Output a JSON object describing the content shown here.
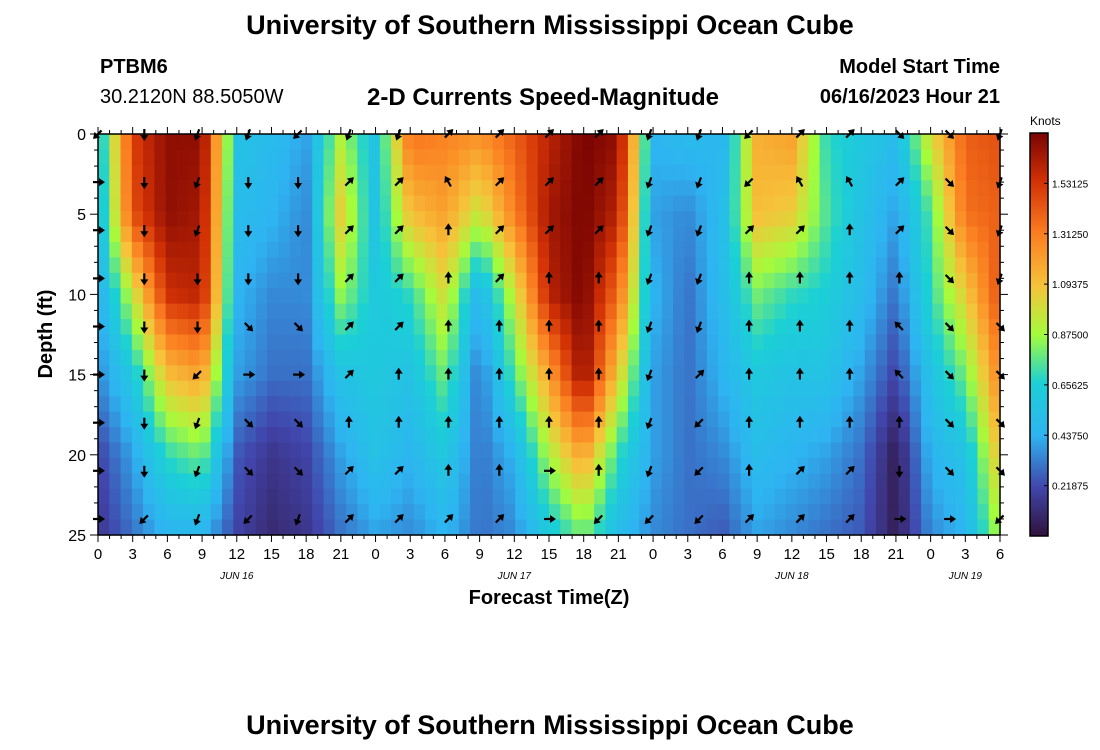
{
  "header": {
    "top_title": "University of Southern Mississippi Ocean Cube",
    "bottom_title": "University of Southern Mississippi Ocean Cube",
    "station": "PTBM6",
    "coords": "30.2120N  88.5050W",
    "chart_title": "2-D Currents Speed-Magnitude",
    "model_label": "Model Start Time",
    "model_time": "06/16/2023 Hour 21"
  },
  "chart_data": {
    "type": "heatmap",
    "title": "2-D Currents Speed-Magnitude",
    "xlabel": "Forecast Time(Z)",
    "ylabel": "Depth (ft)",
    "ylim": [
      0,
      25
    ],
    "y_ticks": [
      0,
      5,
      10,
      15,
      20,
      25
    ],
    "x_tick_labels": [
      "0",
      "3",
      "6",
      "9",
      "12",
      "15",
      "18",
      "21",
      "0",
      "3",
      "6",
      "9",
      "12",
      "15",
      "18",
      "21",
      "0",
      "3",
      "6",
      "9",
      "12",
      "15",
      "18",
      "21",
      "0",
      "3",
      "6"
    ],
    "date_labels": [
      {
        "label": "JUN 16",
        "hour": 12
      },
      {
        "label": "JUN 17",
        "hour": 36
      },
      {
        "label": "JUN 18",
        "hour": 60
      },
      {
        "label": "JUN 19",
        "hour": 75
      }
    ],
    "x_range_hours": [
      0,
      78
    ],
    "colorbar": {
      "unit": "Knots",
      "min": 0,
      "max": 1.75,
      "tick_labels": [
        "1.53125",
        "1.31250",
        "1.09375",
        "0.87500",
        "0.65625",
        "0.43750",
        "0.21875"
      ],
      "tick_values": [
        1.53125,
        1.3125,
        1.09375,
        0.875,
        0.65625,
        0.4375,
        0.21875
      ]
    },
    "speed_knots": {
      "hours": [
        0,
        3,
        6,
        9,
        12,
        15,
        18,
        21,
        24,
        27,
        30,
        33,
        36,
        39,
        42,
        45,
        48,
        51,
        54,
        57,
        60,
        63,
        66,
        69,
        72,
        75,
        78
      ],
      "depths_ft": [
        0,
        5,
        10,
        15,
        20,
        25
      ],
      "rows": [
        [
          0.55,
          1.5,
          1.7,
          1.7,
          0.55,
          0.5,
          0.4,
          0.9,
          0.55,
          1.35,
          1.3,
          1.25,
          1.4,
          1.6,
          1.75,
          1.7,
          0.45,
          0.5,
          0.45,
          1.15,
          1.2,
          0.7,
          0.6,
          0.5,
          1.0,
          1.4,
          1.45
        ],
        [
          0.5,
          1.45,
          1.7,
          1.65,
          0.5,
          0.45,
          0.35,
          1.05,
          0.55,
          1.1,
          1.2,
          0.95,
          1.3,
          1.65,
          1.75,
          1.6,
          0.4,
          0.35,
          0.5,
          1.1,
          1.05,
          0.75,
          0.55,
          0.4,
          0.75,
          1.35,
          1.4
        ],
        [
          0.4,
          0.95,
          1.55,
          1.6,
          0.45,
          0.35,
          0.35,
          0.85,
          0.6,
          0.7,
          1.0,
          0.45,
          0.95,
          1.6,
          1.75,
          1.35,
          0.45,
          0.3,
          0.5,
          0.8,
          0.7,
          0.65,
          0.5,
          0.3,
          0.7,
          1.05,
          1.45
        ],
        [
          0.35,
          0.6,
          1.1,
          1.2,
          0.4,
          0.3,
          0.3,
          0.55,
          0.6,
          0.55,
          0.8,
          0.3,
          0.75,
          1.2,
          1.7,
          1.05,
          0.4,
          0.3,
          0.45,
          0.6,
          0.55,
          0.55,
          0.4,
          0.2,
          0.55,
          0.8,
          1.3
        ],
        [
          0.2,
          0.4,
          0.7,
          0.8,
          0.25,
          0.15,
          0.2,
          0.4,
          0.55,
          0.45,
          0.6,
          0.3,
          0.45,
          0.9,
          1.2,
          0.7,
          0.4,
          0.3,
          0.35,
          0.5,
          0.45,
          0.4,
          0.3,
          0.05,
          0.45,
          0.55,
          1.1
        ],
        [
          0.15,
          0.3,
          0.45,
          0.45,
          0.2,
          0.1,
          0.15,
          0.3,
          0.4,
          0.35,
          0.45,
          0.3,
          0.35,
          0.6,
          0.8,
          0.5,
          0.35,
          0.3,
          0.25,
          0.4,
          0.35,
          0.3,
          0.25,
          0.05,
          0.35,
          0.45,
          0.9
        ]
      ]
    },
    "direction_arrows": {
      "hours": [
        0,
        4,
        8.6,
        13,
        17.3,
        21.7,
        26,
        30.3,
        34.7,
        39,
        43.3,
        47.7,
        52,
        56.3,
        60.7,
        65,
        69.3,
        73.6,
        78
      ],
      "depths_ft": [
        0,
        3,
        6,
        9,
        12,
        15,
        18,
        21,
        24
      ],
      "rows_deg": [
        [
          225,
          180,
          200,
          200,
          225,
          200,
          200,
          45,
          45,
          45,
          45,
          200,
          200,
          225,
          45,
          45,
          135,
          135,
          200
        ],
        [
          90,
          180,
          200,
          180,
          180,
          45,
          45,
          330,
          45,
          45,
          45,
          200,
          200,
          225,
          330,
          330,
          45,
          135,
          200
        ],
        [
          90,
          180,
          200,
          180,
          180,
          45,
          45,
          0,
          45,
          45,
          45,
          200,
          200,
          45,
          45,
          0,
          45,
          135,
          200
        ],
        [
          90,
          180,
          180,
          180,
          180,
          45,
          45,
          0,
          45,
          0,
          0,
          200,
          200,
          0,
          0,
          0,
          0,
          135,
          200
        ],
        [
          90,
          180,
          180,
          135,
          135,
          45,
          45,
          0,
          0,
          0,
          0,
          200,
          200,
          0,
          0,
          0,
          315,
          135,
          135
        ],
        [
          90,
          180,
          225,
          90,
          90,
          45,
          0,
          0,
          0,
          0,
          0,
          200,
          45,
          0,
          0,
          0,
          315,
          135,
          135
        ],
        [
          90,
          180,
          200,
          135,
          135,
          0,
          0,
          0,
          0,
          0,
          0,
          200,
          225,
          0,
          0,
          0,
          0,
          135,
          135
        ],
        [
          90,
          180,
          200,
          135,
          135,
          45,
          45,
          0,
          0,
          90,
          0,
          200,
          225,
          0,
          45,
          45,
          180,
          135,
          135
        ],
        [
          90,
          225,
          200,
          225,
          200,
          45,
          45,
          45,
          45,
          90,
          225,
          225,
          225,
          45,
          45,
          45,
          90,
          90,
          225
        ]
      ]
    }
  }
}
